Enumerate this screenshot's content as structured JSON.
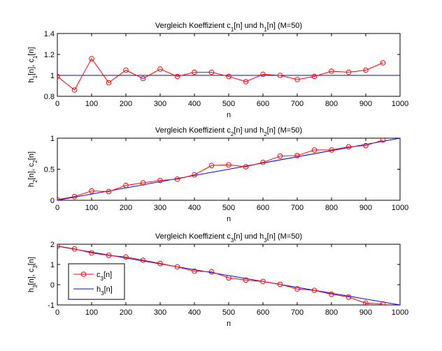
{
  "chart_data": [
    {
      "type": "line",
      "title": [
        {
          "t": "Vergleich Koeffizient c"
        },
        {
          "t": "1",
          "sub": true
        },
        {
          "t": "[n] und h"
        },
        {
          "t": "1",
          "sub": true
        },
        {
          "t": "[n] (M=50)"
        }
      ],
      "xlabel": [
        {
          "t": "n"
        }
      ],
      "ylabel": [
        {
          "t": "h"
        },
        {
          "t": "1",
          "sub": true
        },
        {
          "t": "[n], c"
        },
        {
          "t": "1",
          "sub": true
        },
        {
          "t": "[n]"
        }
      ],
      "xlim": [
        0,
        1000
      ],
      "ylim": [
        0.8,
        1.4
      ],
      "xticks": [
        0,
        100,
        200,
        300,
        400,
        500,
        600,
        700,
        800,
        900,
        1000
      ],
      "yticks": [
        0.8,
        1,
        1.2,
        1.4
      ],
      "grid": false,
      "series": [
        {
          "name": "c1[n]",
          "color": "#ff0000",
          "marker": "circle",
          "x": [
            0,
            50,
            100,
            150,
            200,
            250,
            300,
            350,
            400,
            450,
            500,
            550,
            600,
            650,
            700,
            750,
            800,
            850,
            900,
            950
          ],
          "y": [
            0.99,
            0.86,
            1.16,
            0.93,
            1.05,
            0.97,
            1.06,
            0.99,
            1.03,
            1.03,
            0.99,
            0.94,
            1.01,
            1.0,
            0.96,
            0.99,
            1.04,
            1.03,
            1.05,
            1.12
          ]
        },
        {
          "name": "h1[n]",
          "color": "#0000ff",
          "marker": "none",
          "x": [
            0,
            1000
          ],
          "y": [
            1,
            1
          ]
        }
      ]
    },
    {
      "type": "line",
      "title": [
        {
          "t": "Vergleich Koeffizient c"
        },
        {
          "t": "2",
          "sub": true
        },
        {
          "t": "[n] und h"
        },
        {
          "t": "2",
          "sub": true
        },
        {
          "t": "[n] (M=50)"
        }
      ],
      "xlabel": [
        {
          "t": "n"
        }
      ],
      "ylabel": [
        {
          "t": "h"
        },
        {
          "t": "2",
          "sub": true
        },
        {
          "t": "[n], c"
        },
        {
          "t": "2",
          "sub": true
        },
        {
          "t": "[n]"
        }
      ],
      "xlim": [
        0,
        1000
      ],
      "ylim": [
        0,
        1
      ],
      "xticks": [
        0,
        100,
        200,
        300,
        400,
        500,
        600,
        700,
        800,
        900,
        1000
      ],
      "yticks": [
        0,
        0.5,
        1
      ],
      "grid": false,
      "series": [
        {
          "name": "c2[n]",
          "color": "#ff0000",
          "marker": "circle",
          "x": [
            0,
            50,
            100,
            150,
            200,
            250,
            300,
            350,
            400,
            450,
            500,
            550,
            600,
            650,
            700,
            750,
            800,
            850,
            900,
            950
          ],
          "y": [
            0.01,
            0.06,
            0.15,
            0.14,
            0.24,
            0.28,
            0.32,
            0.34,
            0.41,
            0.56,
            0.57,
            0.54,
            0.61,
            0.71,
            0.72,
            0.81,
            0.81,
            0.86,
            0.88,
            0.97
          ]
        },
        {
          "name": "h2[n]",
          "color": "#0000ff",
          "marker": "none",
          "x": [
            0,
            1000
          ],
          "y": [
            0,
            1
          ]
        }
      ]
    },
    {
      "type": "line",
      "title": [
        {
          "t": "Vergleich Koeffizient c"
        },
        {
          "t": "3",
          "sub": true
        },
        {
          "t": "[n] und h"
        },
        {
          "t": "3",
          "sub": true
        },
        {
          "t": "[n] (M=50)"
        }
      ],
      "xlabel": [
        {
          "t": "n"
        }
      ],
      "ylabel": [
        {
          "t": "h"
        },
        {
          "t": "3",
          "sub": true
        },
        {
          "t": "[n],  c"
        },
        {
          "t": "3",
          "sub": true
        },
        {
          "t": "[n]"
        }
      ],
      "xlim": [
        0,
        1000
      ],
      "ylim": [
        -1,
        2
      ],
      "xticks": [
        0,
        100,
        200,
        300,
        400,
        500,
        600,
        700,
        800,
        900,
        1000
      ],
      "yticks": [
        -1,
        0,
        1,
        2
      ],
      "grid": false,
      "legend": {
        "placement": "bottom-left",
        "entries": [
          [
            {
              "t": "c"
            },
            {
              "t": "3",
              "sub": true
            },
            {
              "t": "[n]"
            }
          ],
          [
            {
              "t": "h"
            },
            {
              "t": "3",
              "sub": true
            },
            {
              "t": "[n]"
            }
          ]
        ]
      },
      "series": [
        {
          "name": "c3[n]",
          "color": "#ff0000",
          "marker": "circle",
          "x": [
            0,
            50,
            100,
            150,
            200,
            250,
            300,
            350,
            400,
            450,
            500,
            550,
            600,
            650,
            700,
            750,
            800,
            850,
            900,
            950
          ],
          "y": [
            1.91,
            1.77,
            1.57,
            1.45,
            1.37,
            1.21,
            1.05,
            0.88,
            0.67,
            0.64,
            0.34,
            0.23,
            0.16,
            0.02,
            -0.21,
            -0.28,
            -0.47,
            -0.61,
            -0.91,
            -0.95
          ]
        },
        {
          "name": "h3[n]",
          "color": "#0000ff",
          "marker": "none",
          "x": [
            0,
            1000
          ],
          "y": [
            1.9,
            -1.0
          ]
        }
      ]
    }
  ]
}
